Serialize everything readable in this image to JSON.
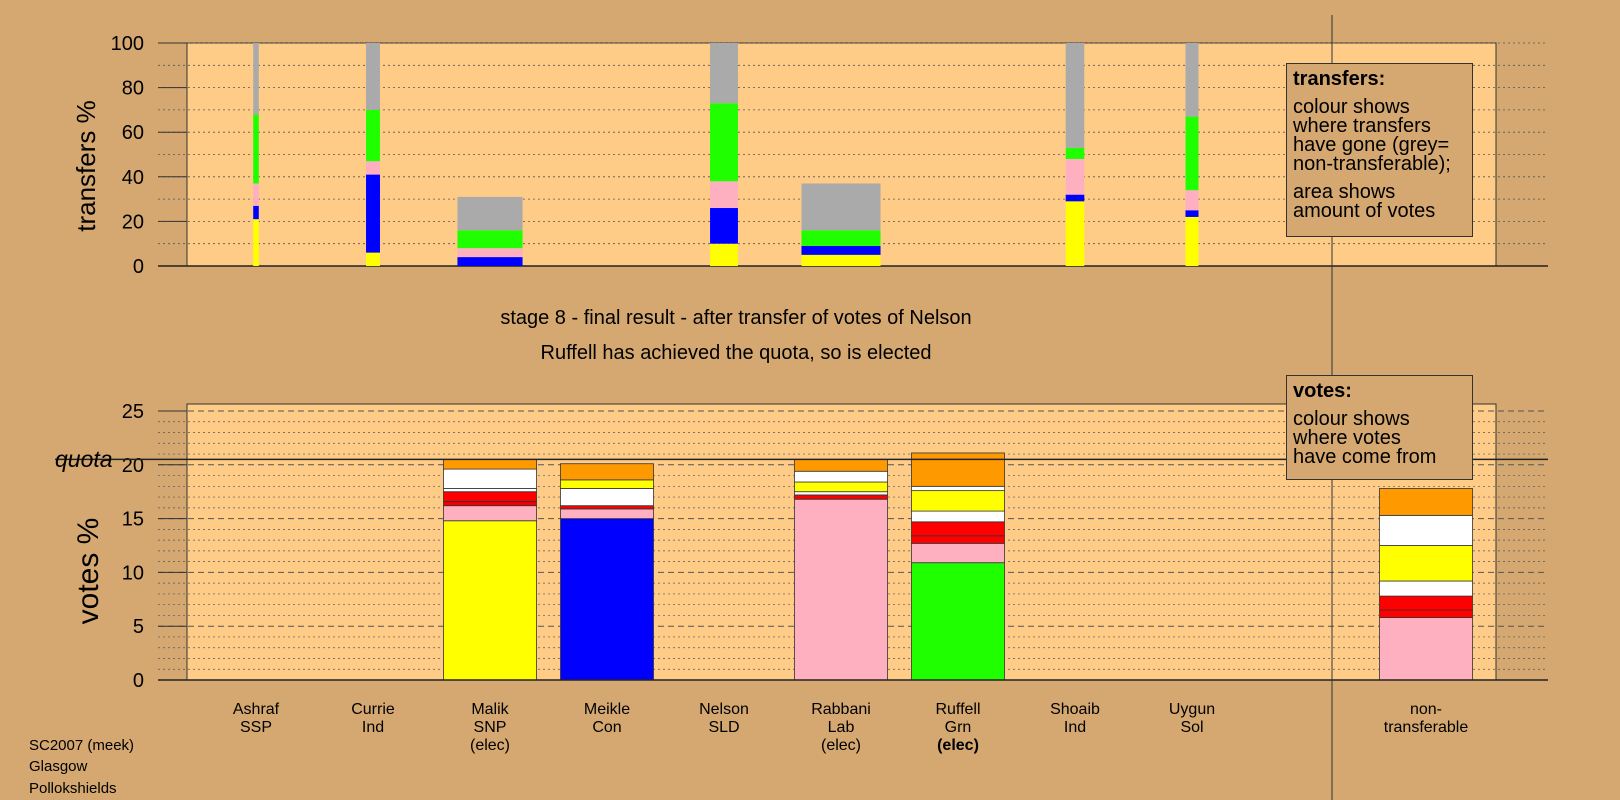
{
  "stage_title": "stage 8 - final result - after transfer of votes of Nelson",
  "stage_subtitle": "Ruffell has achieved the quota, so is elected",
  "transfers_box": {
    "title": "transfers:",
    "line1": "colour shows",
    "line2": "where transfers",
    "line3": "have gone (grey=",
    "line4": "non-transferable);",
    "line5": "area shows",
    "line6": "amount of votes"
  },
  "votes_box": {
    "title": "votes:",
    "line1": "colour shows",
    "line2": "where votes",
    "line3": "have come from"
  },
  "footer": {
    "line1": "SC2007 (meek)",
    "line2": "Glasgow",
    "line3": "Pollokshields"
  },
  "colors": {
    "background": "#d4a870",
    "plot_bg": "#ffcc88"
  },
  "chart_data": [
    {
      "type": "bar",
      "name": "transfers",
      "ylabel": "transfers %",
      "ylim": [
        0,
        100
      ],
      "yticks": [
        0,
        20,
        40,
        60,
        80,
        100
      ],
      "grid": true,
      "segment_colors": [
        "#ffff00",
        "#0000ff",
        "#ffb0c0",
        "#20ff00",
        "#aaaaaa"
      ],
      "bars": [
        {
          "x": 1,
          "width_scale": 0.06,
          "segments": [
            21,
            6,
            10,
            31,
            32
          ]
        },
        {
          "x": 2,
          "width_scale": 0.15,
          "segments": [
            6,
            35,
            6,
            23,
            30
          ]
        },
        {
          "x": 3,
          "width_scale": 0.7,
          "segments": [
            0,
            4,
            4,
            8,
            15
          ]
        },
        {
          "x": 5,
          "width_scale": 0.3,
          "segments": [
            10,
            16,
            12,
            35,
            27
          ]
        },
        {
          "x": 6,
          "width_scale": 0.85,
          "segments": [
            5,
            4,
            0,
            7,
            21
          ]
        },
        {
          "x": 8,
          "width_scale": 0.2,
          "segments": [
            29,
            3,
            16,
            5,
            47
          ]
        },
        {
          "x": 9,
          "width_scale": 0.14,
          "segments": [
            22,
            3,
            9,
            33,
            33
          ]
        }
      ]
    },
    {
      "type": "bar",
      "name": "votes",
      "ylabel": "votes %",
      "ylim": [
        0,
        25
      ],
      "yticks": [
        0,
        5,
        10,
        15,
        20,
        25
      ],
      "quota": 20.5,
      "quota_label": "quota",
      "grid": true,
      "categories": [
        {
          "line1": "Ashraf",
          "line2": "SSP",
          "line3": ""
        },
        {
          "line1": "Currie",
          "line2": "Ind",
          "line3": ""
        },
        {
          "line1": "Malik",
          "line2": "SNP",
          "line3": "(elec)"
        },
        {
          "line1": "Meikle",
          "line2": "Con",
          "line3": ""
        },
        {
          "line1": "Nelson",
          "line2": "SLD",
          "line3": ""
        },
        {
          "line1": "Rabbani",
          "line2": "Lab",
          "line3": "(elec)"
        },
        {
          "line1": "Ruffell",
          "line2": "Grn",
          "line3": "(elec)"
        },
        {
          "line1": "Shoaib",
          "line2": "Ind",
          "line3": ""
        },
        {
          "line1": "Uygun",
          "line2": "Sol",
          "line3": ""
        },
        {
          "line1": "non-",
          "line2": "transferable",
          "line3": ""
        }
      ],
      "stacks": [
        [],
        [],
        [
          [
            "#ffff00",
            14.8
          ],
          [
            "#ffb0c0",
            1.4
          ],
          [
            "#ee0000",
            0.4
          ],
          [
            "#ff0000",
            0.9
          ],
          [
            "#ffffff",
            0.3
          ],
          [
            "#ffffff",
            1.8
          ],
          [
            "#ff9900",
            0.9
          ]
        ],
        [
          [
            "#0000ff",
            15.0
          ],
          [
            "#ffb0c0",
            0.9
          ],
          [
            "#ff0000",
            0.3
          ],
          [
            "#ffffff",
            1.6
          ],
          [
            "#ffff00",
            0.8
          ],
          [
            "#ff9900",
            1.5
          ]
        ],
        [],
        [
          [
            "#ffb0c0",
            16.8
          ],
          [
            "#ff0000",
            0.4
          ],
          [
            "#ffffff",
            0.3
          ],
          [
            "#ffff00",
            0.9
          ],
          [
            "#ffffff",
            1.0
          ],
          [
            "#ff9900",
            1.1
          ]
        ],
        [
          [
            "#20ff00",
            10.9
          ],
          [
            "#ffb0c0",
            1.8
          ],
          [
            "#ff0000",
            0.7
          ],
          [
            "#ff0000",
            1.3
          ],
          [
            "#ffffff",
            1.0
          ],
          [
            "#ffff00",
            1.9
          ],
          [
            "#ffffff",
            0.4
          ],
          [
            "#ff9900",
            3.1
          ]
        ],
        [],
        [],
        [
          [
            "#ffb0c0",
            5.8
          ],
          [
            "#ff0000",
            0.7
          ],
          [
            "#ff0000",
            1.3
          ],
          [
            "#ffffff",
            1.4
          ],
          [
            "#ffff00",
            3.3
          ],
          [
            "#ffffff",
            2.8
          ],
          [
            "#ff9900",
            2.5
          ]
        ]
      ]
    }
  ]
}
